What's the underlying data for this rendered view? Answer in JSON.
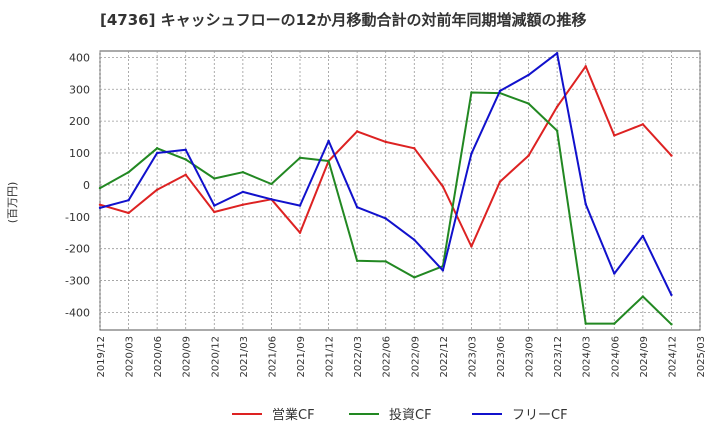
{
  "chart_data": {
    "type": "line",
    "title": "[4736]  キャッシュフローの12か月移動合計の対前年同期増減額の推移",
    "ylabel": "(百万円)",
    "xlabel": "",
    "ylim": [
      -455,
      420
    ],
    "yticks": [
      400,
      300,
      200,
      100,
      0,
      -100,
      -200,
      -300,
      -400
    ],
    "grid": true,
    "legend_position": "bottom-center",
    "categories": [
      "2019/12",
      "2020/03",
      "2020/06",
      "2020/09",
      "2020/12",
      "2021/03",
      "2021/06",
      "2021/09",
      "2021/12",
      "2022/03",
      "2022/06",
      "2022/09",
      "2022/12",
      "2023/03",
      "2023/06",
      "2023/09",
      "2023/12",
      "2024/03",
      "2024/06",
      "2024/09",
      "2024/12",
      "2025/03"
    ],
    "series": [
      {
        "name": "営業CF",
        "color": "#dd2222",
        "values": [
          -62,
          -88,
          -15,
          32,
          -85,
          -62,
          -45,
          -150,
          75,
          168,
          135,
          115,
          -5,
          -193,
          10,
          92,
          245,
          372,
          155,
          190,
          92,
          null
        ]
      },
      {
        "name": "投資CF",
        "color": "#228822",
        "values": [
          -10,
          40,
          115,
          80,
          20,
          40,
          3,
          85,
          75,
          -238,
          -240,
          -290,
          -255,
          290,
          288,
          255,
          170,
          -435,
          -435,
          -350,
          -437,
          null
        ]
      },
      {
        "name": "フリーCF",
        "color": "#1111cc",
        "values": [
          -72,
          -48,
          100,
          110,
          -65,
          -22,
          -45,
          -65,
          138,
          -70,
          -105,
          -172,
          -268,
          98,
          295,
          345,
          413,
          -60,
          -278,
          -160,
          -345,
          null
        ]
      }
    ]
  }
}
